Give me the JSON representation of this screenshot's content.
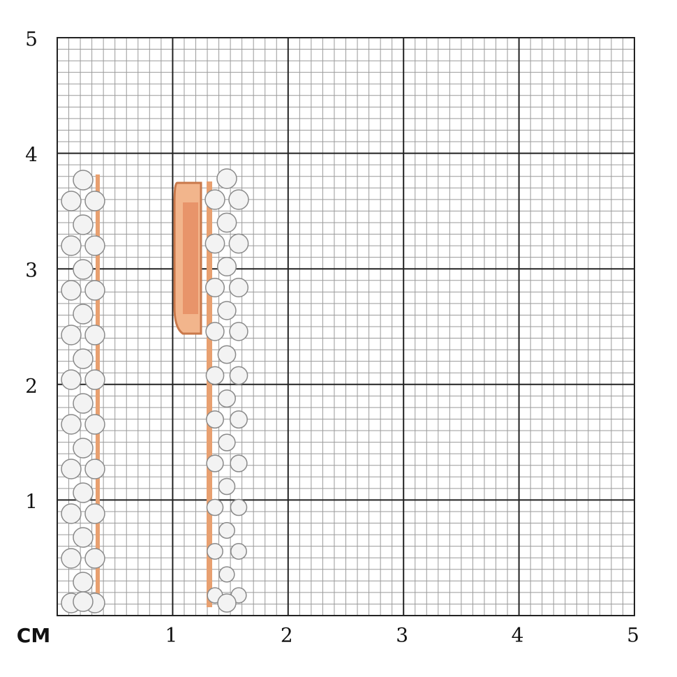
{
  "unit": "CM",
  "xticks": [
    1,
    2,
    3,
    4,
    5
  ],
  "yticks": [
    1,
    2,
    3,
    4,
    5
  ]
}
